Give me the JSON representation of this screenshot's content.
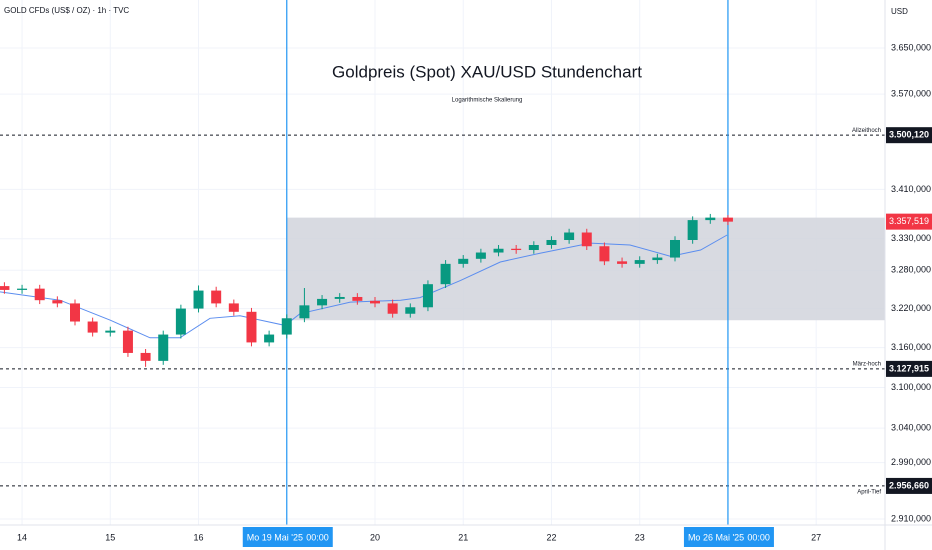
{
  "chart_data": {
    "type": "candlestick",
    "symbol": "GOLD CFDs (US$ / OZ) · 1h · TVC",
    "currency": "USD",
    "title": "Goldpreis (Spot) XAU/USD Stundenchart",
    "subtitle": "Logarithmische Skalierung",
    "log_scale": true,
    "grid": true,
    "up_color": "#089981",
    "down_color": "#f23645",
    "xlim": [
      -0.25,
      9.78
    ],
    "ylim": [
      2901.6,
      3735.3
    ],
    "yticks": [
      {
        "value": 3650,
        "label": "3.650,000"
      },
      {
        "value": 3570,
        "label": "3.570,000"
      },
      {
        "value": 3410,
        "label": "3.410,000"
      },
      {
        "value": 3330,
        "label": "3.330,000"
      },
      {
        "value": 3280,
        "label": "3.280,000"
      },
      {
        "value": 3220,
        "label": "3.220,000"
      },
      {
        "value": 3160,
        "label": "3.160,000"
      },
      {
        "value": 3100,
        "label": "3.100,000"
      },
      {
        "value": 3040,
        "label": "3.040,000"
      },
      {
        "value": 2990,
        "label": "2.990,000"
      },
      {
        "value": 2910,
        "label": "2.910,000"
      }
    ],
    "xticks": [
      {
        "value": 0,
        "label": "14"
      },
      {
        "value": 1,
        "label": "15"
      },
      {
        "value": 2,
        "label": "16"
      },
      {
        "value": 4,
        "label": "20"
      },
      {
        "value": 5,
        "label": "21"
      },
      {
        "value": 6,
        "label": "22"
      },
      {
        "value": 7,
        "label": "23"
      },
      {
        "value": 9,
        "label": "27"
      }
    ],
    "markers": {
      "color": "#2196f3",
      "items": [
        {
          "x": 3,
          "label": "Mo 19 Mai '25",
          "time": "00:00"
        },
        {
          "x": 8,
          "label": "Mo 26 Mai '25",
          "time": "00:00"
        }
      ]
    },
    "range_box": {
      "x_start": 3,
      "low": 3202,
      "high": 3364,
      "color": "#d1d4dc"
    },
    "levels": [
      {
        "value": 3500.12,
        "label": "3.500,120",
        "name": "Allzeithoch"
      },
      {
        "value": 3127.915,
        "label": "3.127,915",
        "name": "März-hoch"
      },
      {
        "value": 2956.66,
        "label": "2.956,660",
        "name": "April-Tief"
      }
    ],
    "last_price": {
      "value": 3357.519,
      "label": "3.357,519"
    },
    "x": [
      -0.2,
      0,
      0.2,
      0.4,
      0.6,
      0.8,
      1,
      1.2,
      1.4,
      1.6,
      1.8,
      2,
      2.2,
      2.4,
      2.6,
      2.8,
      3,
      3.2,
      3.4,
      3.6,
      3.8,
      4,
      4.2,
      4.4,
      4.6,
      4.8,
      5,
      5.2,
      5.4,
      5.6,
      5.8,
      6,
      6.2,
      6.4,
      6.6,
      6.8,
      7,
      7.2,
      7.4,
      7.6,
      7.8,
      8
    ],
    "open": [
      3255,
      3249,
      3251,
      3233,
      3228,
      3200,
      3183,
      3186,
      3152,
      3140,
      3180,
      3220,
      3248,
      3228,
      3215,
      3168,
      3180,
      3205,
      3225,
      3235,
      3238,
      3232,
      3228,
      3212,
      3222,
      3258,
      3290,
      3298,
      3308,
      3314,
      3312,
      3320,
      3328,
      3340,
      3318,
      3294,
      3290,
      3296,
      3300,
      3328,
      3360,
      3364
    ],
    "high": [
      3261,
      3257,
      3257,
      3239,
      3234,
      3206,
      3192,
      3192,
      3158,
      3186,
      3226,
      3256,
      3254,
      3234,
      3221,
      3186,
      3211,
      3252,
      3241,
      3244,
      3244,
      3238,
      3234,
      3228,
      3264,
      3296,
      3304,
      3314,
      3320,
      3320,
      3326,
      3334,
      3346,
      3346,
      3324,
      3300,
      3302,
      3306,
      3334,
      3366,
      3370,
      3368
    ],
    "low": [
      3243,
      3243,
      3227,
      3222,
      3194,
      3177,
      3177,
      3146,
      3131,
      3134,
      3174,
      3214,
      3222,
      3209,
      3162,
      3162,
      3174,
      3199,
      3219,
      3229,
      3226,
      3222,
      3206,
      3206,
      3216,
      3252,
      3284,
      3292,
      3302,
      3306,
      3306,
      3314,
      3322,
      3312,
      3288,
      3284,
      3284,
      3290,
      3294,
      3322,
      3354,
      3352
    ],
    "close": [
      3249,
      3251,
      3233,
      3228,
      3200,
      3183,
      3186,
      3152,
      3140,
      3180,
      3220,
      3248,
      3228,
      3215,
      3168,
      3180,
      3205,
      3225,
      3235,
      3238,
      3232,
      3228,
      3212,
      3222,
      3258,
      3290,
      3298,
      3308,
      3314,
      3312,
      3320,
      3328,
      3340,
      3318,
      3294,
      3290,
      3296,
      3300,
      3328,
      3360,
      3364,
      3357.5
    ],
    "ma": {
      "color": "#5b8def",
      "x": [
        -0.25,
        0.43,
        1,
        1.45,
        1.79,
        2.13,
        2.47,
        2.98,
        3.15,
        3.72,
        4.29,
        4.51,
        4.97,
        5.42,
        5.87,
        6.44,
        6.89,
        7.35,
        7.69,
        7.99
      ],
      "values": [
        3246,
        3233,
        3202,
        3175,
        3175,
        3205,
        3209,
        3194,
        3212,
        3230,
        3233,
        3237,
        3264,
        3293,
        3307,
        3323,
        3320,
        3302,
        3312,
        3336
      ]
    }
  }
}
